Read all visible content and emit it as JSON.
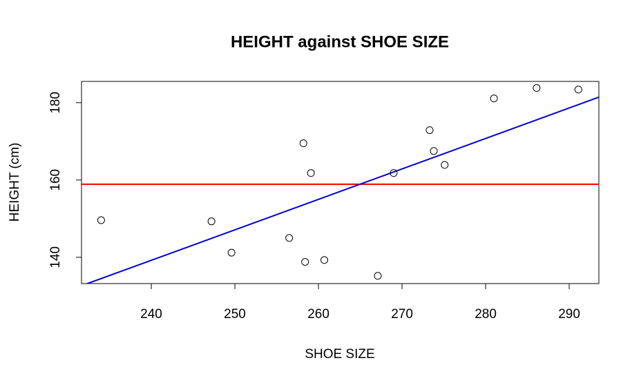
{
  "chart_data": {
    "type": "scatter",
    "title": "HEIGHT against SHOE SIZE",
    "x_label": "SHOE SIZE",
    "y_label": "HEIGHT (cm)",
    "series": [
      {
        "color": "#000000",
        "x": [
          234,
          247.2,
          249.6,
          256.5,
          258.2,
          259.1,
          258.4,
          260.7,
          267.1,
          269.0,
          273.3,
          273.8,
          275.1,
          281.0,
          286.1,
          291.1
        ],
        "values": [
          149.6,
          149.3,
          141.2,
          145,
          169.5,
          161.8,
          138.8,
          139.3,
          135.2,
          161.8,
          172.9,
          167.5,
          163.9,
          181.1,
          183.8,
          183.4
        ]
      }
    ],
    "reference_lines": [
      {
        "type": "hline",
        "value": 158.9,
        "color": "#ff0000"
      },
      {
        "type": "abline",
        "intercept": -49.9,
        "slope": 0.788,
        "color": "#0000cc"
      }
    ],
    "xlim": [
      231.65,
      293.55
    ],
    "ylim": [
      133.2,
      185.5
    ],
    "xticks": [
      240,
      250,
      260,
      270,
      280,
      290
    ],
    "yticks": [
      140,
      160,
      180
    ]
  }
}
